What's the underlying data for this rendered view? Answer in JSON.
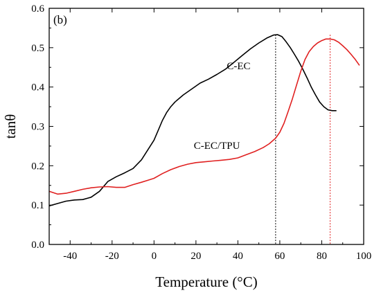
{
  "chart_data": {
    "type": "line",
    "panel_label": "(b)",
    "xlabel": "Temperature (°C)",
    "ylabel": "tanθ",
    "xlim": [
      -50,
      100
    ],
    "ylim": [
      0.0,
      0.6
    ],
    "xticks": [
      -40,
      -20,
      0,
      20,
      40,
      60,
      80,
      100
    ],
    "yticks": [
      0.0,
      0.1,
      0.2,
      0.3,
      0.4,
      0.5,
      0.6
    ],
    "grid": false,
    "series": [
      {
        "name": "C-EC",
        "color": "#000000",
        "points": [
          [
            -50,
            0.098
          ],
          [
            -46,
            0.104
          ],
          [
            -42,
            0.11
          ],
          [
            -38,
            0.113
          ],
          [
            -34,
            0.114
          ],
          [
            -30,
            0.12
          ],
          [
            -26,
            0.135
          ],
          [
            -22,
            0.16
          ],
          [
            -18,
            0.172
          ],
          [
            -14,
            0.182
          ],
          [
            -10,
            0.193
          ],
          [
            -6,
            0.215
          ],
          [
            -3,
            0.24
          ],
          [
            0,
            0.265
          ],
          [
            2,
            0.29
          ],
          [
            4,
            0.315
          ],
          [
            6,
            0.335
          ],
          [
            8,
            0.35
          ],
          [
            10,
            0.362
          ],
          [
            14,
            0.38
          ],
          [
            18,
            0.395
          ],
          [
            22,
            0.41
          ],
          [
            26,
            0.42
          ],
          [
            30,
            0.432
          ],
          [
            34,
            0.445
          ],
          [
            38,
            0.462
          ],
          [
            42,
            0.48
          ],
          [
            46,
            0.497
          ],
          [
            50,
            0.512
          ],
          [
            54,
            0.525
          ],
          [
            57,
            0.532
          ],
          [
            59,
            0.533
          ],
          [
            61,
            0.528
          ],
          [
            63,
            0.515
          ],
          [
            65,
            0.5
          ],
          [
            67,
            0.483
          ],
          [
            69,
            0.465
          ],
          [
            71,
            0.445
          ],
          [
            73,
            0.423
          ],
          [
            75,
            0.4
          ],
          [
            77,
            0.38
          ],
          [
            79,
            0.362
          ],
          [
            81,
            0.35
          ],
          [
            83,
            0.342
          ],
          [
            85,
            0.34
          ],
          [
            87,
            0.34
          ]
        ]
      },
      {
        "name": "C-EC/TPU",
        "color": "#e02020",
        "points": [
          [
            -50,
            0.135
          ],
          [
            -46,
            0.128
          ],
          [
            -42,
            0.13
          ],
          [
            -38,
            0.135
          ],
          [
            -34,
            0.14
          ],
          [
            -30,
            0.144
          ],
          [
            -26,
            0.146
          ],
          [
            -22,
            0.147
          ],
          [
            -18,
            0.145
          ],
          [
            -14,
            0.145
          ],
          [
            -10,
            0.152
          ],
          [
            -6,
            0.158
          ],
          [
            -3,
            0.163
          ],
          [
            0,
            0.168
          ],
          [
            4,
            0.18
          ],
          [
            8,
            0.19
          ],
          [
            12,
            0.198
          ],
          [
            16,
            0.204
          ],
          [
            20,
            0.208
          ],
          [
            24,
            0.21
          ],
          [
            28,
            0.212
          ],
          [
            32,
            0.214
          ],
          [
            36,
            0.216
          ],
          [
            40,
            0.22
          ],
          [
            44,
            0.228
          ],
          [
            48,
            0.236
          ],
          [
            52,
            0.246
          ],
          [
            55,
            0.256
          ],
          [
            58,
            0.27
          ],
          [
            60,
            0.285
          ],
          [
            62,
            0.308
          ],
          [
            64,
            0.338
          ],
          [
            66,
            0.37
          ],
          [
            68,
            0.405
          ],
          [
            70,
            0.44
          ],
          [
            72,
            0.47
          ],
          [
            74,
            0.49
          ],
          [
            76,
            0.503
          ],
          [
            78,
            0.512
          ],
          [
            80,
            0.518
          ],
          [
            82,
            0.522
          ],
          [
            84,
            0.522
          ],
          [
            86,
            0.52
          ],
          [
            88,
            0.514
          ],
          [
            90,
            0.505
          ],
          [
            92,
            0.495
          ],
          [
            94,
            0.483
          ],
          [
            96,
            0.47
          ],
          [
            98,
            0.455
          ]
        ]
      }
    ],
    "annotations": [
      {
        "text": "C-EC",
        "x": 46,
        "y": 0.445
      },
      {
        "text": "C-EC/TPU",
        "x": 41,
        "y": 0.243
      }
    ],
    "reference_lines": [
      {
        "x": 58,
        "color": "#000000"
      },
      {
        "x": 84,
        "color": "#e02020"
      }
    ]
  }
}
